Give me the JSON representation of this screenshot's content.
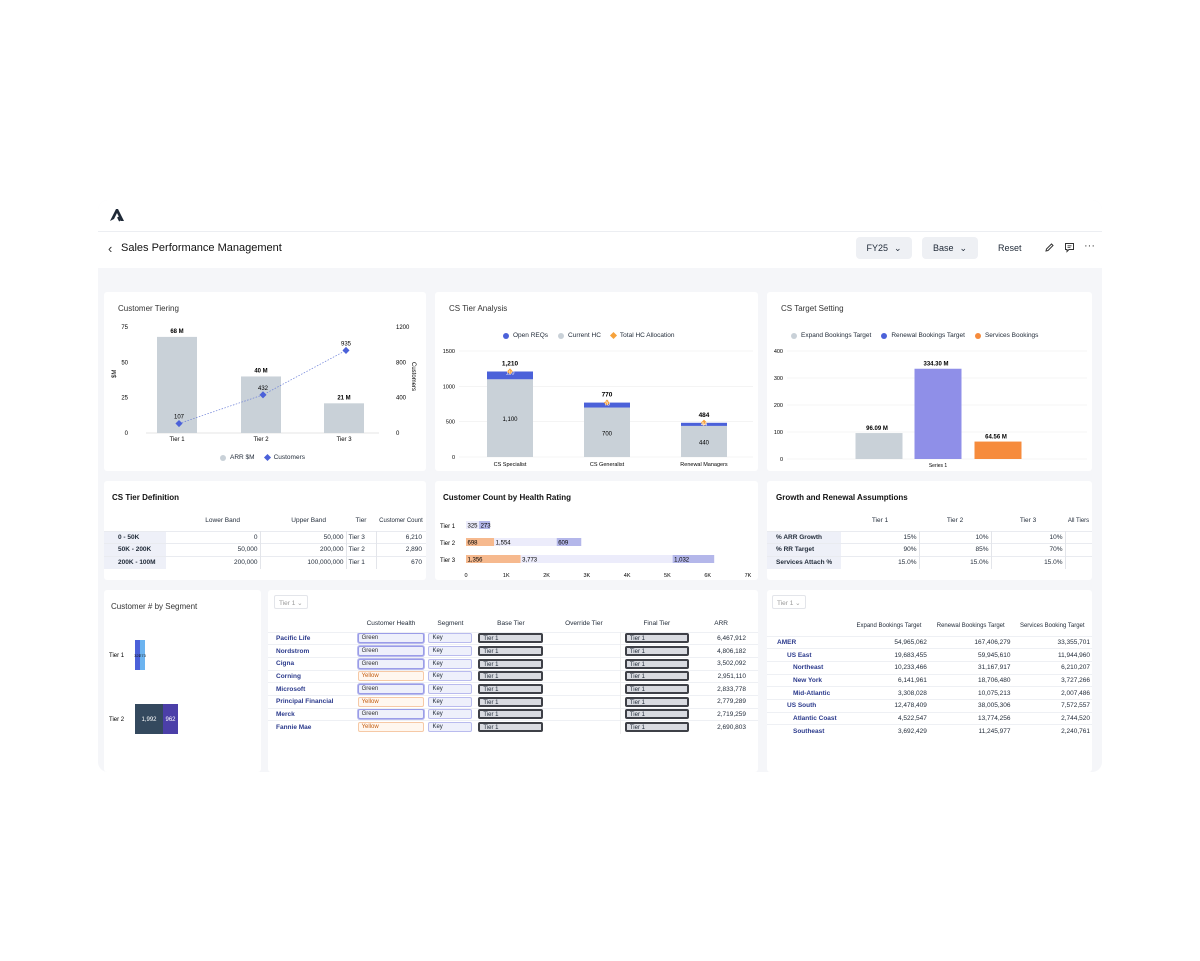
{
  "header": {
    "title": "Sales Performance Management",
    "year": "FY25",
    "scenario": "Base",
    "reset": "Reset"
  },
  "colors": {
    "grey": "#c9d1d8",
    "blue": "#4b61d9",
    "purple": "#8f8fe8",
    "orange": "#f68b3c",
    "lavender": "#b4b7ea",
    "peach": "#f6b98e",
    "navy": "#34495e"
  },
  "tiering": {
    "title": "Customer Tiering",
    "ylabel": "$M",
    "y2label": "Customers",
    "yticks": [
      "75",
      "50",
      "25",
      "0"
    ],
    "y2ticks": [
      "1200",
      "800",
      "400",
      "0"
    ],
    "legend_arr": "ARR $M",
    "legend_cust": "Customers",
    "chart_data": {
      "type": "bar",
      "categories": [
        "Tier 1",
        "Tier 2",
        "Tier 3"
      ],
      "series": [
        {
          "name": "ARR $M",
          "values": [
            68,
            40,
            21
          ],
          "labels": [
            "68 M",
            "40 M",
            "21 M"
          ]
        },
        {
          "name": "Customers",
          "values": [
            107,
            432,
            935
          ]
        }
      ],
      "ylim": [
        0,
        75
      ],
      "y2lim": [
        0,
        1200
      ]
    }
  },
  "tieranalysis": {
    "title": "CS Tier Analysis",
    "legend": [
      "Open REQs",
      "Current HC",
      "Total HC Allocation"
    ],
    "yticks": [
      "1500",
      "1000",
      "500",
      "0"
    ],
    "chart_data": {
      "type": "bar",
      "categories": [
        "CS Specialist",
        "CS Generalist",
        "Renewal Managers"
      ],
      "series": [
        {
          "name": "Current HC",
          "values": [
            1100,
            700,
            440
          ]
        },
        {
          "name": "Open REQs",
          "values": [
            110,
            70,
            44
          ]
        },
        {
          "name": "Total HC Allocation",
          "values": [
            1210,
            770,
            484
          ]
        }
      ],
      "ylim": [
        0,
        1500
      ]
    }
  },
  "target": {
    "title": "CS Target Setting",
    "legend": [
      "Expand Bookings Target",
      "Renewal Bookings Target",
      "Services Bookings"
    ],
    "yticks": [
      "400",
      "300",
      "200",
      "100",
      "0"
    ],
    "chart_data": {
      "type": "bar",
      "categories": [
        "Series 1"
      ],
      "series": [
        {
          "name": "Expand Bookings Target",
          "values": [
            96.09
          ],
          "label": "96.09 M"
        },
        {
          "name": "Renewal Bookings Target",
          "values": [
            334.3
          ],
          "label": "334.30 M"
        },
        {
          "name": "Services Bookings",
          "values": [
            64.56
          ],
          "label": "64.56 M"
        }
      ],
      "ylim": [
        0,
        400
      ]
    }
  },
  "tierdef": {
    "title": "CS Tier Definition",
    "headers": [
      "Lower Band",
      "Upper Band",
      "Tier",
      "Customer Count"
    ],
    "rows": [
      [
        "0 - 50K",
        "0",
        "50,000",
        "Tier 3",
        "6,210"
      ],
      [
        "50K - 200K",
        "50,000",
        "200,000",
        "Tier 2",
        "2,890"
      ],
      [
        "200K - 100M",
        "200,000",
        "100,000,000",
        "Tier 1",
        "670"
      ]
    ]
  },
  "health": {
    "title": "Customer Count by Health Rating",
    "xticks": [
      "0",
      "1K",
      "2K",
      "3K",
      "4K",
      "5K",
      "6K",
      "7K"
    ],
    "chart_data": {
      "type": "bar",
      "categories": [
        "Tier 1",
        "Tier 2",
        "Tier 3"
      ],
      "series": [
        {
          "values": [
            0,
            698,
            1356
          ]
        },
        {
          "values": [
            325,
            1554,
            3773
          ]
        },
        {
          "values": [
            273,
            609,
            1032
          ]
        }
      ],
      "xlim": [
        0,
        7000
      ]
    }
  },
  "growth": {
    "title": "Growth and Renewal Assumptions",
    "headers": [
      "Tier 1",
      "Tier 2",
      "Tier 3",
      "All Tiers"
    ],
    "rows": [
      [
        "% ARR Growth",
        "15%",
        "10%",
        "10%"
      ],
      [
        "% RR Target",
        "90%",
        "85%",
        "70%"
      ],
      [
        "Services Attach %",
        "15.0%",
        "15.0%",
        "15.0%"
      ]
    ]
  },
  "segment": {
    "title": "Customer # by Segment",
    "rows": [
      {
        "label": "Tier 1",
        "values": [
          "325",
          "273"
        ]
      },
      {
        "label": "Tier 2",
        "values": [
          "1,992",
          "962"
        ]
      }
    ]
  },
  "accounts": {
    "filter": "Tier 1",
    "headers": [
      "Customer Health",
      "Segment",
      "Base Tier",
      "Override Tier",
      "Final Tier",
      "ARR"
    ],
    "rows": [
      [
        "Pacific Life",
        "Green",
        "Key",
        "Tier 1",
        "",
        "Tier 1",
        "6,467,912"
      ],
      [
        "Nordstrom",
        "Green",
        "Key",
        "Tier 1",
        "",
        "Tier 1",
        "4,806,182"
      ],
      [
        "Cigna",
        "Green",
        "Key",
        "Tier 1",
        "",
        "Tier 1",
        "3,502,092"
      ],
      [
        "Corning",
        "Yellow",
        "Key",
        "Tier 1",
        "",
        "Tier 1",
        "2,951,110"
      ],
      [
        "Microsoft",
        "Green",
        "Key",
        "Tier 1",
        "",
        "Tier 1",
        "2,833,778"
      ],
      [
        "Principal Financial",
        "Yellow",
        "Key",
        "Tier 1",
        "",
        "Tier 1",
        "2,779,289"
      ],
      [
        "Merck",
        "Green",
        "Key",
        "Tier 1",
        "",
        "Tier 1",
        "2,719,259"
      ],
      [
        "Fannie Mae",
        "Yellow",
        "Key",
        "Tier 1",
        "",
        "Tier 1",
        "2,690,803"
      ]
    ]
  },
  "regions": {
    "filter": "Tier 1",
    "headers": [
      "Expand Bookings Target",
      "Renewal Bookings Target",
      "Services Booking Target"
    ],
    "rows": [
      [
        "AMER",
        "54,965,062",
        "167,406,279",
        "33,355,701"
      ],
      [
        "US East",
        "19,683,455",
        "59,945,610",
        "11,944,960"
      ],
      [
        "Northeast",
        "10,233,466",
        "31,167,917",
        "6,210,207"
      ],
      [
        "New York",
        "6,141,961",
        "18,706,480",
        "3,727,266"
      ],
      [
        "Mid-Atlantic",
        "3,308,028",
        "10,075,213",
        "2,007,486"
      ],
      [
        "US South",
        "12,478,409",
        "38,005,306",
        "7,572,557"
      ],
      [
        "Atlantic Coast",
        "4,522,547",
        "13,774,256",
        "2,744,520"
      ],
      [
        "Southeast",
        "3,692,429",
        "11,245,977",
        "2,240,761"
      ]
    ]
  }
}
